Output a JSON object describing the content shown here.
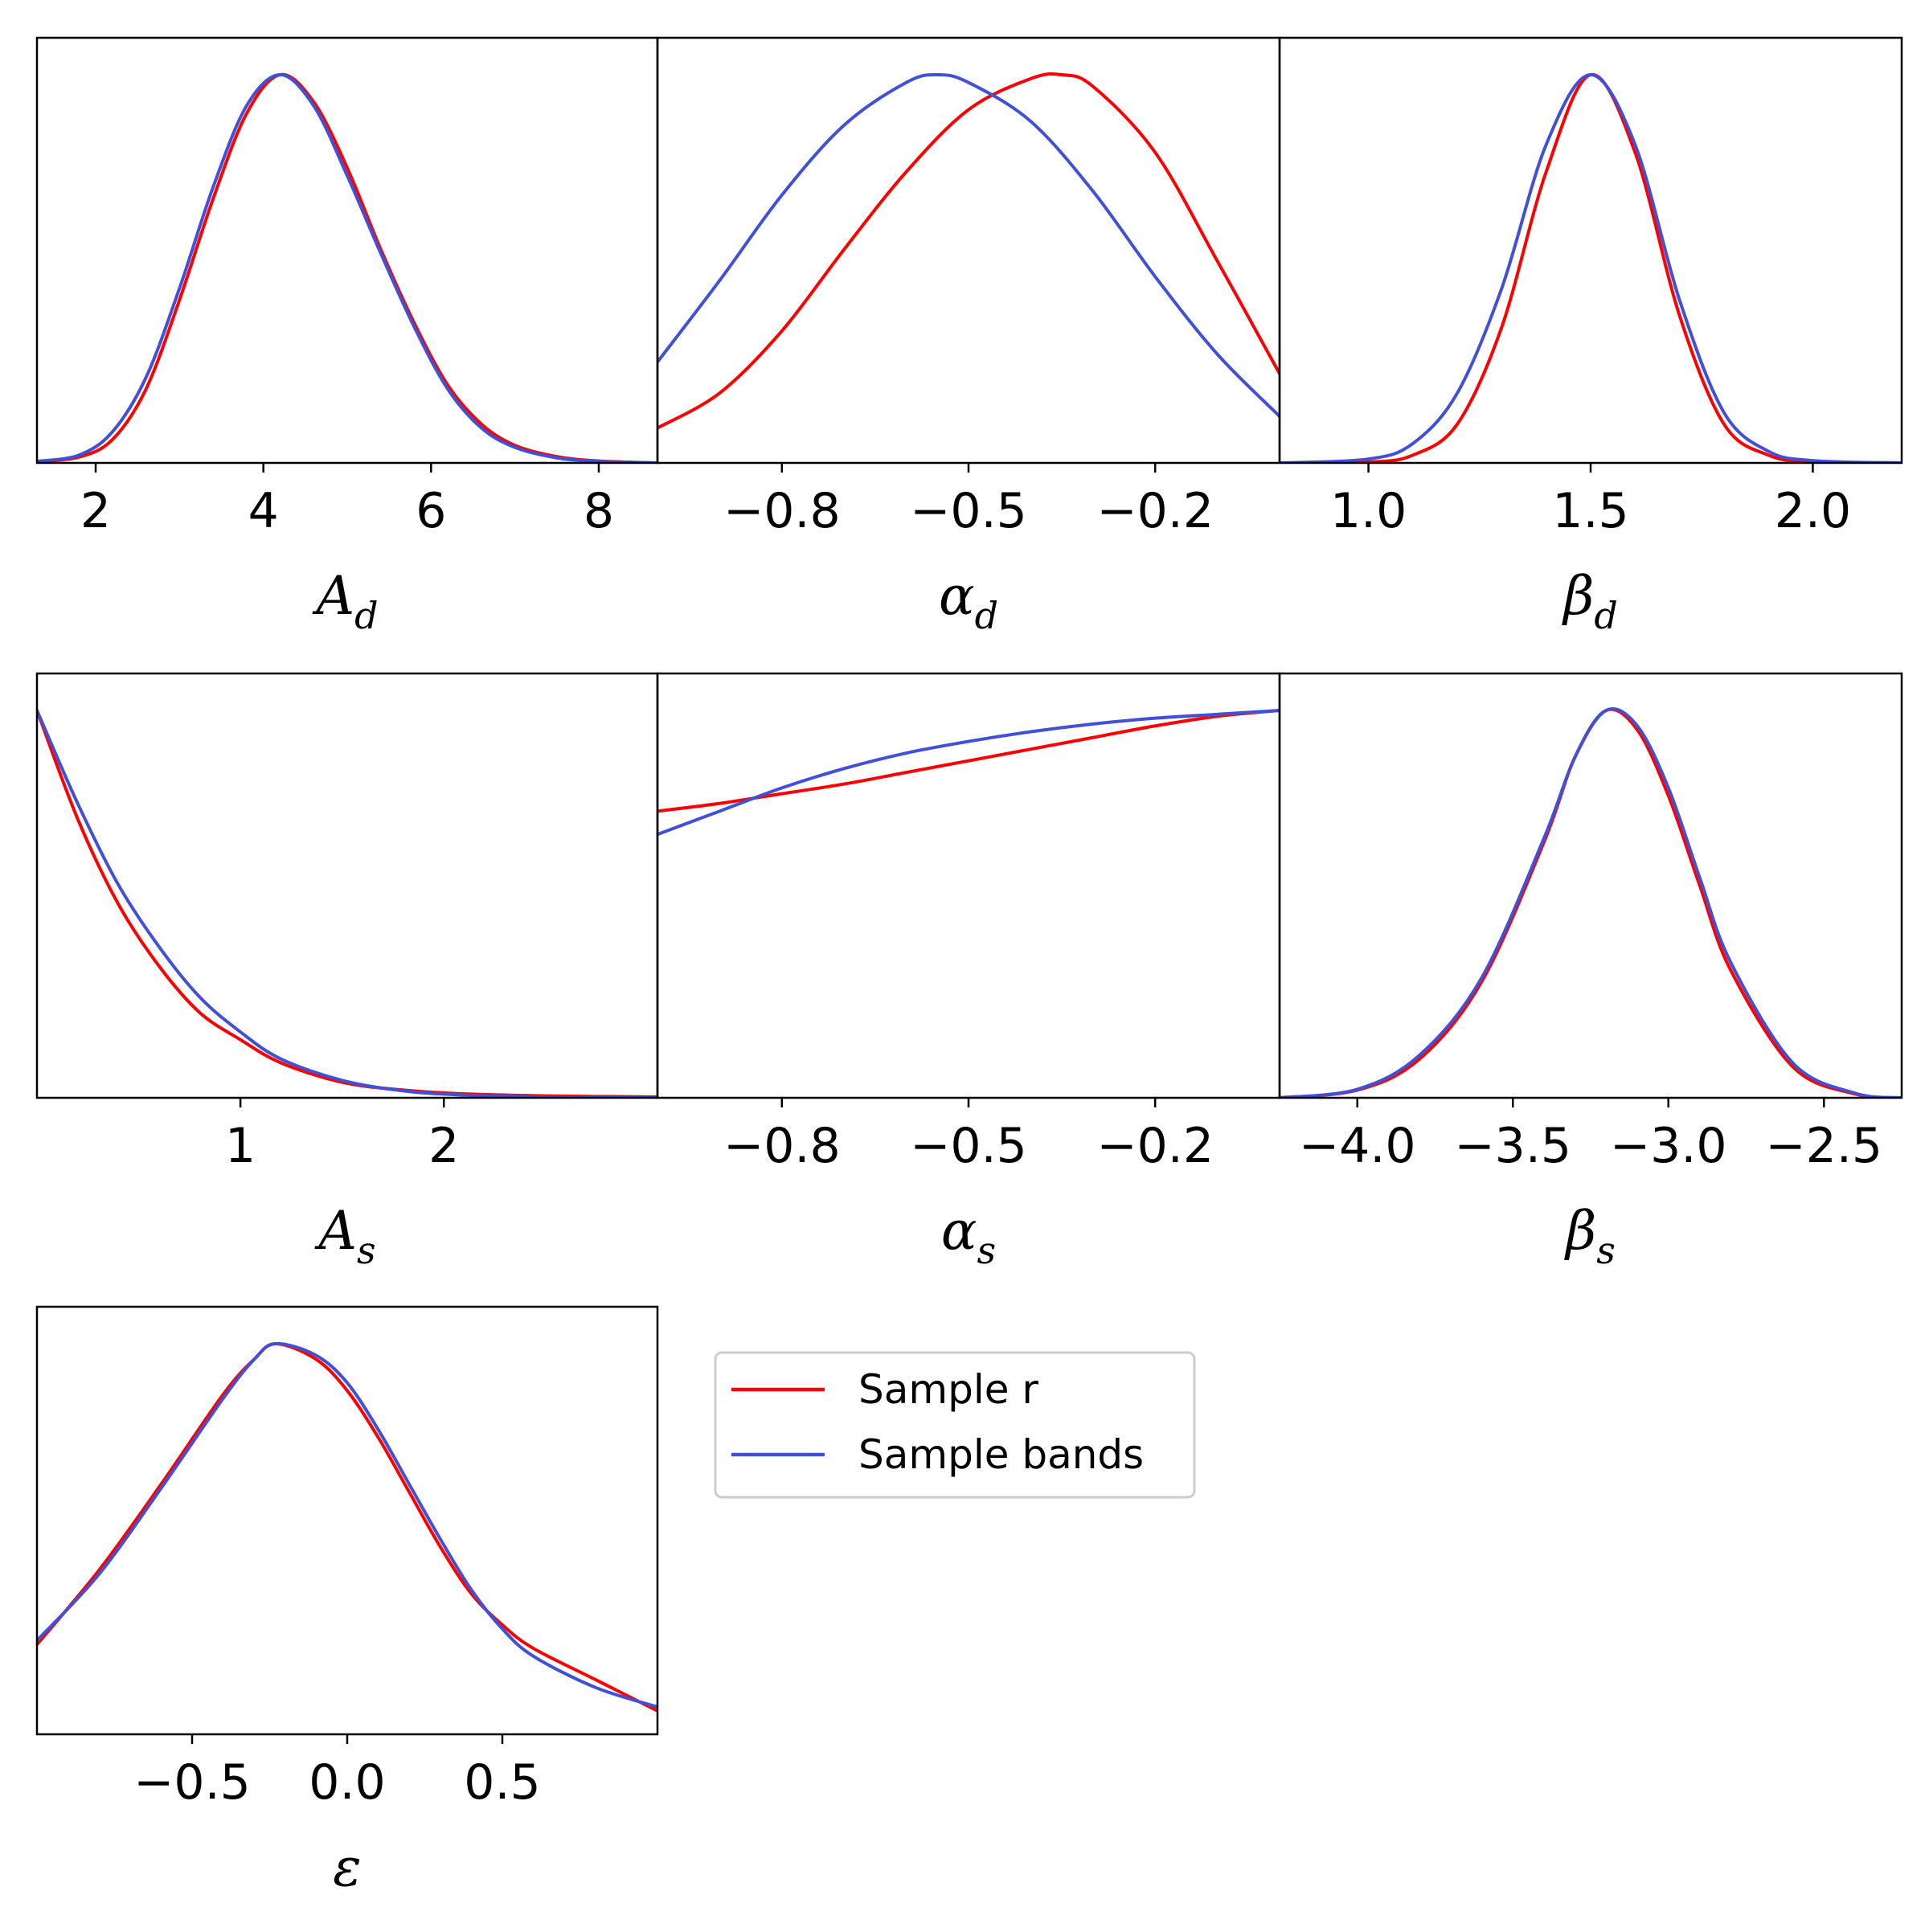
{
  "colors": {
    "sample_r": "#ff0000",
    "sample_bands": "#4150d6"
  },
  "legend": {
    "placement": "right of bottom-left panel",
    "entries": [
      {
        "name": "Sample r",
        "color": "#ff0000"
      },
      {
        "name": "Sample bands",
        "color": "#4150d6"
      }
    ]
  },
  "chart_data": [
    {
      "type": "line",
      "xlabel": {
        "symbol": "A",
        "sub": "d"
      },
      "xlim": [
        1.3,
        8.7
      ],
      "ticks": [
        2,
        4,
        6,
        8
      ],
      "tick_labels": [
        "2",
        "4",
        "6",
        "8"
      ],
      "y_axis": "normalized density, no ticks",
      "series": [
        {
          "name": "Sample r",
          "x": [
            1.3,
            1.8,
            2.2,
            2.6,
            3.0,
            3.4,
            3.8,
            4.2,
            4.6,
            5.0,
            5.4,
            5.8,
            6.2,
            6.6,
            7.0,
            7.5,
            8.0,
            8.7
          ],
          "y": [
            0.003,
            0.015,
            0.06,
            0.19,
            0.42,
            0.68,
            0.9,
            1.0,
            0.93,
            0.76,
            0.55,
            0.36,
            0.2,
            0.1,
            0.045,
            0.016,
            0.005,
            0.0
          ]
        },
        {
          "name": "Sample bands",
          "x": [
            1.3,
            1.8,
            2.2,
            2.6,
            3.0,
            3.4,
            3.8,
            4.2,
            4.6,
            5.0,
            5.4,
            5.8,
            6.2,
            6.6,
            7.0,
            7.5,
            8.0,
            8.7
          ],
          "y": [
            0.004,
            0.02,
            0.08,
            0.22,
            0.45,
            0.71,
            0.92,
            1.0,
            0.92,
            0.74,
            0.54,
            0.35,
            0.19,
            0.09,
            0.04,
            0.013,
            0.004,
            0.0
          ]
        }
      ]
    },
    {
      "type": "line",
      "xlabel": {
        "symbol": "α",
        "sub": "d"
      },
      "xlim": [
        -1.0,
        0.0
      ],
      "ticks": [
        -0.8,
        -0.5,
        -0.2
      ],
      "tick_labels": [
        "−0.8",
        "−0.5",
        "−0.2"
      ],
      "y_axis": "normalized density, no ticks",
      "series": [
        {
          "name": "Sample r",
          "x": [
            -1.0,
            -0.9,
            -0.8,
            -0.7,
            -0.6,
            -0.5,
            -0.4,
            -0.35,
            -0.3,
            -0.2,
            -0.1,
            0.0
          ],
          "y": [
            0.09,
            0.18,
            0.34,
            0.55,
            0.75,
            0.91,
            0.99,
            1.0,
            0.97,
            0.8,
            0.52,
            0.23
          ]
        },
        {
          "name": "Sample bands",
          "x": [
            -1.0,
            -0.9,
            -0.8,
            -0.7,
            -0.6,
            -0.55,
            -0.5,
            -0.4,
            -0.3,
            -0.2,
            -0.1,
            0.0
          ],
          "y": [
            0.26,
            0.47,
            0.69,
            0.87,
            0.98,
            1.0,
            0.98,
            0.88,
            0.7,
            0.48,
            0.28,
            0.12
          ]
        }
      ]
    },
    {
      "type": "line",
      "xlabel": {
        "symbol": "β",
        "sub": "d"
      },
      "xlim": [
        0.8,
        2.2
      ],
      "ticks": [
        1.0,
        1.5,
        2.0
      ],
      "tick_labels": [
        "1.0",
        "1.5",
        "2.0"
      ],
      "y_axis": "normalized density, no ticks",
      "series": [
        {
          "name": "Sample r",
          "x": [
            0.8,
            1.0,
            1.1,
            1.2,
            1.3,
            1.4,
            1.5,
            1.6,
            1.7,
            1.8,
            1.9,
            2.0,
            2.2
          ],
          "y": [
            0.0,
            0.002,
            0.02,
            0.1,
            0.35,
            0.75,
            1.0,
            0.8,
            0.38,
            0.1,
            0.02,
            0.003,
            0.0
          ]
        },
        {
          "name": "Sample bands",
          "x": [
            0.8,
            1.0,
            1.1,
            1.2,
            1.3,
            1.4,
            1.5,
            1.6,
            1.7,
            1.8,
            1.9,
            2.0,
            2.2
          ],
          "y": [
            0.0,
            0.01,
            0.05,
            0.18,
            0.45,
            0.82,
            1.0,
            0.82,
            0.42,
            0.13,
            0.03,
            0.006,
            0.0
          ]
        }
      ]
    },
    {
      "type": "line",
      "xlabel": {
        "symbol": "A",
        "sub": "s"
      },
      "xlim": [
        0.0,
        3.05
      ],
      "ticks": [
        1,
        2
      ],
      "tick_labels": [
        "1",
        "2"
      ],
      "y_axis": "normalized density, no ticks",
      "series": [
        {
          "name": "Sample r",
          "x": [
            0.0,
            0.2,
            0.4,
            0.6,
            0.8,
            1.0,
            1.2,
            1.5,
            1.8,
            2.1,
            2.5,
            3.05
          ],
          "y": [
            1.0,
            0.72,
            0.5,
            0.34,
            0.22,
            0.15,
            0.09,
            0.04,
            0.02,
            0.01,
            0.005,
            0.002
          ]
        },
        {
          "name": "Sample bands",
          "x": [
            0.0,
            0.2,
            0.4,
            0.6,
            0.8,
            1.0,
            1.2,
            1.5,
            1.8,
            2.1,
            2.5,
            3.05
          ],
          "y": [
            1.0,
            0.76,
            0.55,
            0.39,
            0.26,
            0.17,
            0.1,
            0.045,
            0.018,
            0.007,
            0.002,
            0.0
          ]
        }
      ]
    },
    {
      "type": "line",
      "xlabel": {
        "symbol": "α",
        "sub": "s"
      },
      "xlim": [
        -1.0,
        0.0
      ],
      "ticks": [
        -0.8,
        -0.5,
        -0.2
      ],
      "tick_labels": [
        "−0.8",
        "−0.5",
        "−0.2"
      ],
      "y_axis": "normalized density, no ticks",
      "series": [
        {
          "name": "Sample r",
          "x": [
            -1.0,
            -0.9,
            -0.8,
            -0.7,
            -0.6,
            -0.5,
            -0.4,
            -0.3,
            -0.2,
            -0.1,
            0.0
          ],
          "y": [
            0.74,
            0.76,
            0.785,
            0.81,
            0.84,
            0.87,
            0.9,
            0.93,
            0.96,
            0.985,
            1.0
          ]
        },
        {
          "name": "Sample bands",
          "x": [
            -1.0,
            -0.9,
            -0.8,
            -0.7,
            -0.6,
            -0.5,
            -0.4,
            -0.3,
            -0.2,
            -0.1,
            0.0
          ],
          "y": [
            0.68,
            0.74,
            0.8,
            0.85,
            0.89,
            0.92,
            0.945,
            0.965,
            0.98,
            0.99,
            1.0
          ]
        }
      ]
    },
    {
      "type": "line",
      "xlabel": {
        "symbol": "β",
        "sub": "s"
      },
      "xlim": [
        -4.25,
        -2.25
      ],
      "ticks": [
        -4.0,
        -3.5,
        -3.0,
        -2.5
      ],
      "tick_labels": [
        "−4.0",
        "−3.5",
        "−3.0",
        "−2.5"
      ],
      "y_axis": "normalized density, no ticks",
      "series": [
        {
          "name": "Sample r",
          "x": [
            -4.25,
            -4.0,
            -3.8,
            -3.6,
            -3.4,
            -3.3,
            -3.2,
            -3.1,
            -3.0,
            -2.9,
            -2.8,
            -2.6,
            -2.4,
            -2.25
          ],
          "y": [
            0.0,
            0.02,
            0.1,
            0.3,
            0.66,
            0.88,
            1.0,
            0.95,
            0.78,
            0.55,
            0.33,
            0.08,
            0.01,
            0.0
          ]
        },
        {
          "name": "Sample bands",
          "x": [
            -4.25,
            -4.0,
            -3.8,
            -3.6,
            -3.4,
            -3.3,
            -3.2,
            -3.1,
            -3.0,
            -2.9,
            -2.8,
            -2.6,
            -2.4,
            -2.25
          ],
          "y": [
            0.0,
            0.022,
            0.11,
            0.31,
            0.67,
            0.88,
            1.0,
            0.96,
            0.8,
            0.57,
            0.35,
            0.09,
            0.012,
            0.0
          ]
        }
      ]
    },
    {
      "type": "line",
      "xlabel": {
        "symbol": "ε",
        "sub": ""
      },
      "xlim": [
        -1.0,
        1.0
      ],
      "ticks": [
        -0.5,
        0.0,
        0.5
      ],
      "tick_labels": [
        "−0.5",
        "0.0",
        "0.5"
      ],
      "y_axis": "normalized density, no ticks",
      "series": [
        {
          "name": "Sample r",
          "x": [
            -1.0,
            -0.8,
            -0.6,
            -0.4,
            -0.3,
            -0.23,
            -0.1,
            0.0,
            0.1,
            0.2,
            0.3,
            0.4,
            0.5,
            0.6,
            0.8,
            1.0
          ],
          "y": [
            0.23,
            0.42,
            0.64,
            0.87,
            0.96,
            1.0,
            0.96,
            0.88,
            0.76,
            0.62,
            0.48,
            0.36,
            0.28,
            0.22,
            0.14,
            0.06
          ]
        },
        {
          "name": "Sample bands",
          "x": [
            -1.0,
            -0.8,
            -0.6,
            -0.4,
            -0.3,
            -0.23,
            -0.1,
            0.0,
            0.1,
            0.2,
            0.3,
            0.4,
            0.5,
            0.6,
            0.8,
            1.0
          ],
          "y": [
            0.24,
            0.41,
            0.63,
            0.86,
            0.96,
            1.0,
            0.97,
            0.9,
            0.78,
            0.64,
            0.5,
            0.37,
            0.27,
            0.2,
            0.12,
            0.07
          ]
        }
      ]
    }
  ]
}
